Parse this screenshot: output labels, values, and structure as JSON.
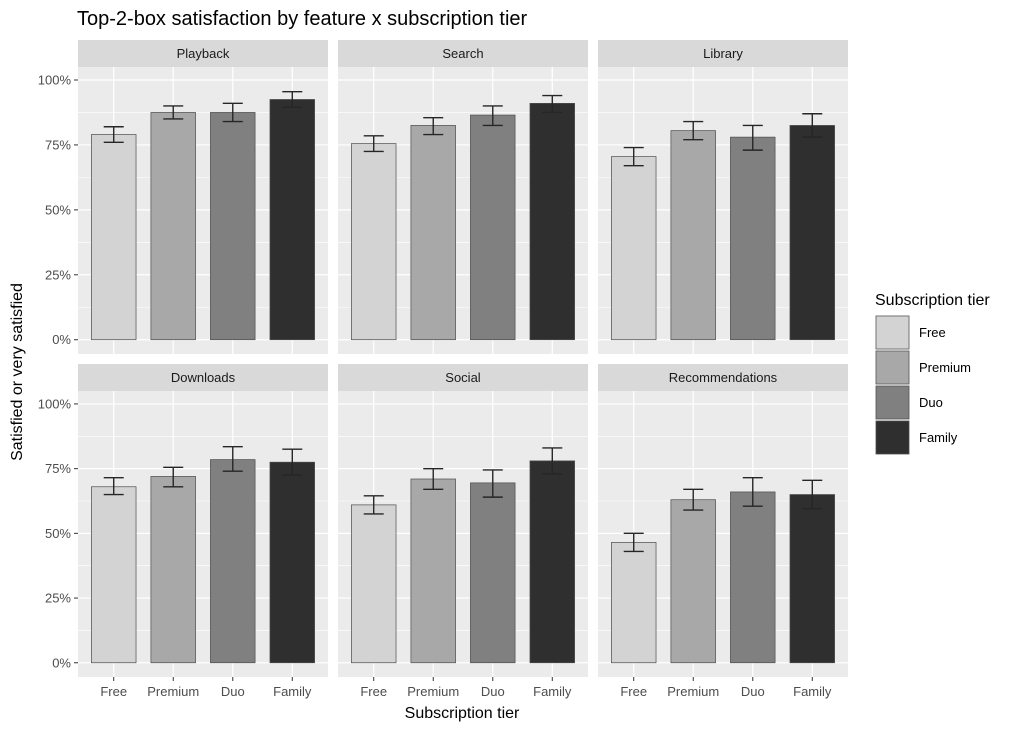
{
  "chart_data": {
    "type": "bar",
    "title": "Top-2-box satisfaction by feature x subscription tier",
    "xlabel": "Subscription tier",
    "ylabel": "Satisfied or very satisfied",
    "ylim": [
      0,
      1.05
    ],
    "y_ticks": [
      0,
      0.25,
      0.5,
      0.75,
      1.0
    ],
    "y_tick_labels": [
      "0%",
      "25%",
      "50%",
      "75%",
      "100%"
    ],
    "categories": [
      "Free",
      "Premium",
      "Duo",
      "Family"
    ],
    "legend": {
      "title": "Subscription tier",
      "placement": "right",
      "entries": [
        "Free",
        "Premium",
        "Duo",
        "Family"
      ]
    },
    "colors": {
      "Free": "#d3d3d3",
      "Premium": "#a8a8a8",
      "Duo": "#808080",
      "Family": "#2f2f2f",
      "panel_bg": "#ebebeb",
      "strip_bg": "#d9d9d9",
      "grid": "#ffffff",
      "bar_outline": "#4d4d4d",
      "error_bar": "#262626"
    },
    "grid": true,
    "error_bars": true,
    "panels": [
      {
        "name": "Playback",
        "values": [
          0.79,
          0.875,
          0.875,
          0.925
        ],
        "lower": [
          0.76,
          0.85,
          0.84,
          0.895
        ],
        "upper": [
          0.82,
          0.9,
          0.91,
          0.955
        ]
      },
      {
        "name": "Search",
        "values": [
          0.755,
          0.825,
          0.865,
          0.91
        ],
        "lower": [
          0.725,
          0.79,
          0.825,
          0.875
        ],
        "upper": [
          0.785,
          0.855,
          0.9,
          0.94
        ]
      },
      {
        "name": "Library",
        "values": [
          0.705,
          0.805,
          0.78,
          0.825
        ],
        "lower": [
          0.67,
          0.77,
          0.73,
          0.78
        ],
        "upper": [
          0.74,
          0.84,
          0.825,
          0.87
        ]
      },
      {
        "name": "Downloads",
        "values": [
          0.68,
          0.72,
          0.785,
          0.775
        ],
        "lower": [
          0.65,
          0.68,
          0.74,
          0.725
        ],
        "upper": [
          0.715,
          0.755,
          0.835,
          0.825
        ]
      },
      {
        "name": "Social",
        "values": [
          0.61,
          0.71,
          0.695,
          0.78
        ],
        "lower": [
          0.575,
          0.67,
          0.64,
          0.73
        ],
        "upper": [
          0.645,
          0.75,
          0.745,
          0.83
        ]
      },
      {
        "name": "Recommendations",
        "values": [
          0.465,
          0.63,
          0.66,
          0.65
        ],
        "lower": [
          0.43,
          0.59,
          0.605,
          0.595
        ],
        "upper": [
          0.5,
          0.67,
          0.715,
          0.705
        ]
      }
    ]
  }
}
